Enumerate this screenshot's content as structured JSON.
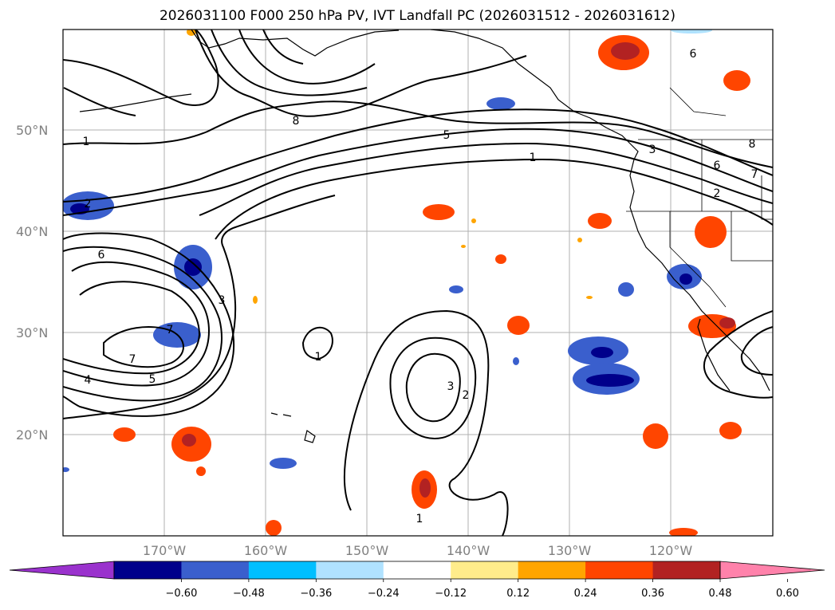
{
  "title": "2026031100 F000 250 hPa PV, IVT Landfall PC (2026031512 - 2026031612)",
  "lat_labels": [
    "50°N",
    "40°N",
    "30°N",
    "20°N"
  ],
  "lon_labels": [
    "170°W",
    "160°W",
    "150°W",
    "140°W",
    "130°W",
    "120°W"
  ],
  "contour_labels": [
    "1",
    "2",
    "6",
    "3",
    "7",
    "4",
    "5",
    "7",
    "8",
    "5",
    "1",
    "3",
    "6",
    "7",
    "8",
    "2",
    "1",
    "3",
    "2",
    "1",
    "6"
  ],
  "colorbar": {
    "colors": [
      "#9a32cd",
      "#00008b",
      "#3a5fcd",
      "#00bfff",
      "#b0e2ff",
      "#ffffff",
      "#ffec8b",
      "#ffa500",
      "#ff4500",
      "#b22222",
      "#ff82ab"
    ],
    "ticks": [
      "−0.60",
      "−0.48",
      "−0.36",
      "−0.24",
      "−0.12",
      "0.12",
      "0.24",
      "0.36",
      "0.48",
      "0.60"
    ]
  }
}
